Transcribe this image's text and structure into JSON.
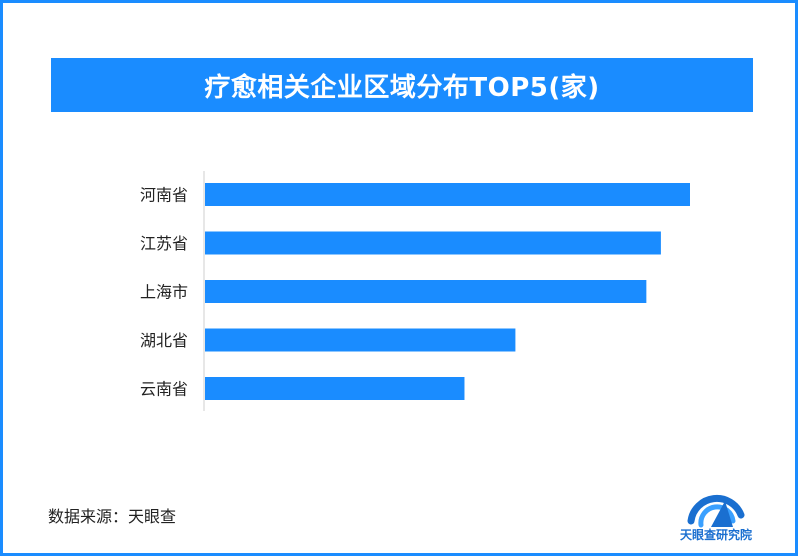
{
  "chart_data": {
    "type": "bar",
    "orientation": "horizontal",
    "title": "疗愈相关企业区域分布TOP5(家)",
    "categories": [
      "河南省",
      "江苏省",
      "上海市",
      "湖北省",
      "云南省"
    ],
    "values": [
      1000,
      940,
      910,
      640,
      535
    ],
    "xlim": [
      0,
      1000
    ],
    "grid": false,
    "legend": "none"
  },
  "colors": {
    "accent": "#1a8cff",
    "bar": "#1a8cff",
    "border": "#1a8cff",
    "logo": "#1a6fd0"
  },
  "source_text": "数据来源：天眼查",
  "logo": {
    "icon": "tianyancha-logo-icon",
    "text": "天眼查研究院"
  }
}
